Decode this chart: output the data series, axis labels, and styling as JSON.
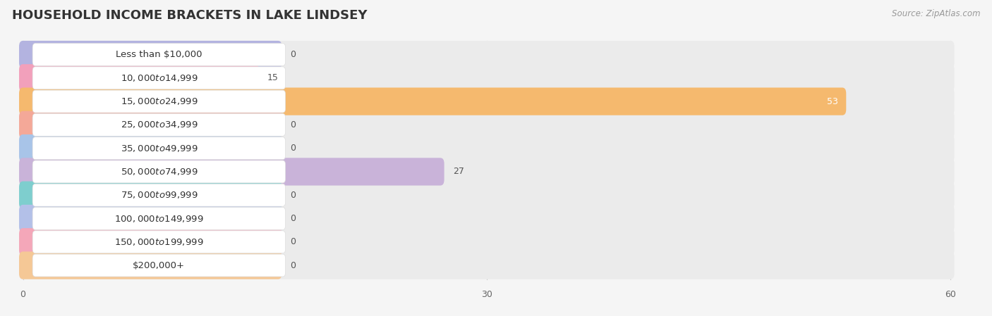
{
  "title": "HOUSEHOLD INCOME BRACKETS IN LAKE LINDSEY",
  "source_text": "Source: ZipAtlas.com",
  "categories": [
    "Less than $10,000",
    "$10,000 to $14,999",
    "$15,000 to $24,999",
    "$25,000 to $34,999",
    "$35,000 to $49,999",
    "$50,000 to $74,999",
    "$75,000 to $99,999",
    "$100,000 to $149,999",
    "$150,000 to $199,999",
    "$200,000+"
  ],
  "values": [
    0,
    15,
    53,
    0,
    0,
    27,
    0,
    0,
    0,
    0
  ],
  "bar_colors": [
    "#b3b3e0",
    "#f2a0bb",
    "#f5b96e",
    "#f4a898",
    "#a8c4e8",
    "#c9b3d9",
    "#7ecece",
    "#b3c0e8",
    "#f4a7b9",
    "#f5c896"
  ],
  "row_bg_color": "#ebebeb",
  "white_label_bg": "#ffffff",
  "background_color": "#f5f5f5",
  "xlim": [
    0,
    60
  ],
  "xticks": [
    0,
    30,
    60
  ],
  "title_fontsize": 13,
  "label_fontsize": 9.5,
  "value_fontsize": 9,
  "value_inside_color": "#ffffff",
  "value_outside_color": "#555555"
}
